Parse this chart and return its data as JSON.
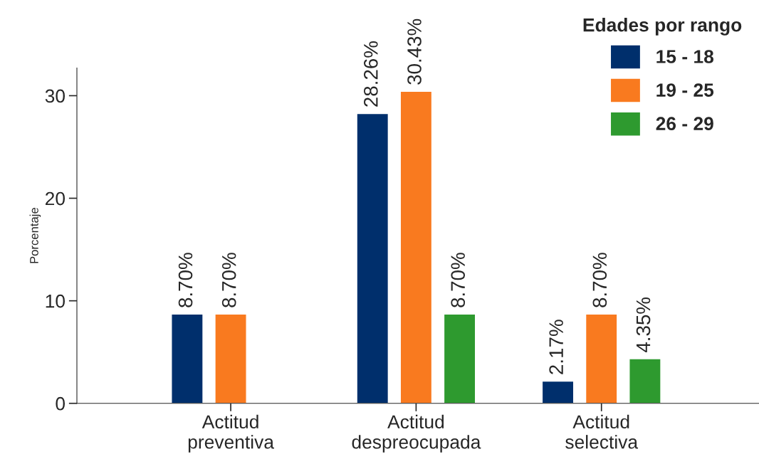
{
  "chart_data": {
    "type": "bar",
    "ylabel": "Porcentaje",
    "legend_title": "Edades por rango",
    "legend": "top right",
    "categories": [
      "Actitud\npreventiva",
      "Actitud\ndespreocupada",
      "Actitud\nselectiva"
    ],
    "series": [
      {
        "name": "15 - 18",
        "color": "#002f6c",
        "values": [
          8.7,
          28.26,
          2.17
        ],
        "value_labels": [
          "8.70%",
          "28.26%",
          "2.17%"
        ]
      },
      {
        "name": "19 - 25",
        "color": "#f97a1f",
        "values": [
          8.7,
          30.43,
          8.7
        ],
        "value_labels": [
          "8.70%",
          "30.43%",
          "8.70%"
        ]
      },
      {
        "name": "26 - 29",
        "color": "#2e9a2f",
        "values": [
          null,
          8.7,
          4.35
        ],
        "value_labels": [
          null,
          "8.70%",
          "4.35%"
        ]
      }
    ],
    "ylim": [
      0,
      32.7
    ],
    "yticks": [
      0,
      10,
      20,
      30
    ],
    "grid": false
  }
}
